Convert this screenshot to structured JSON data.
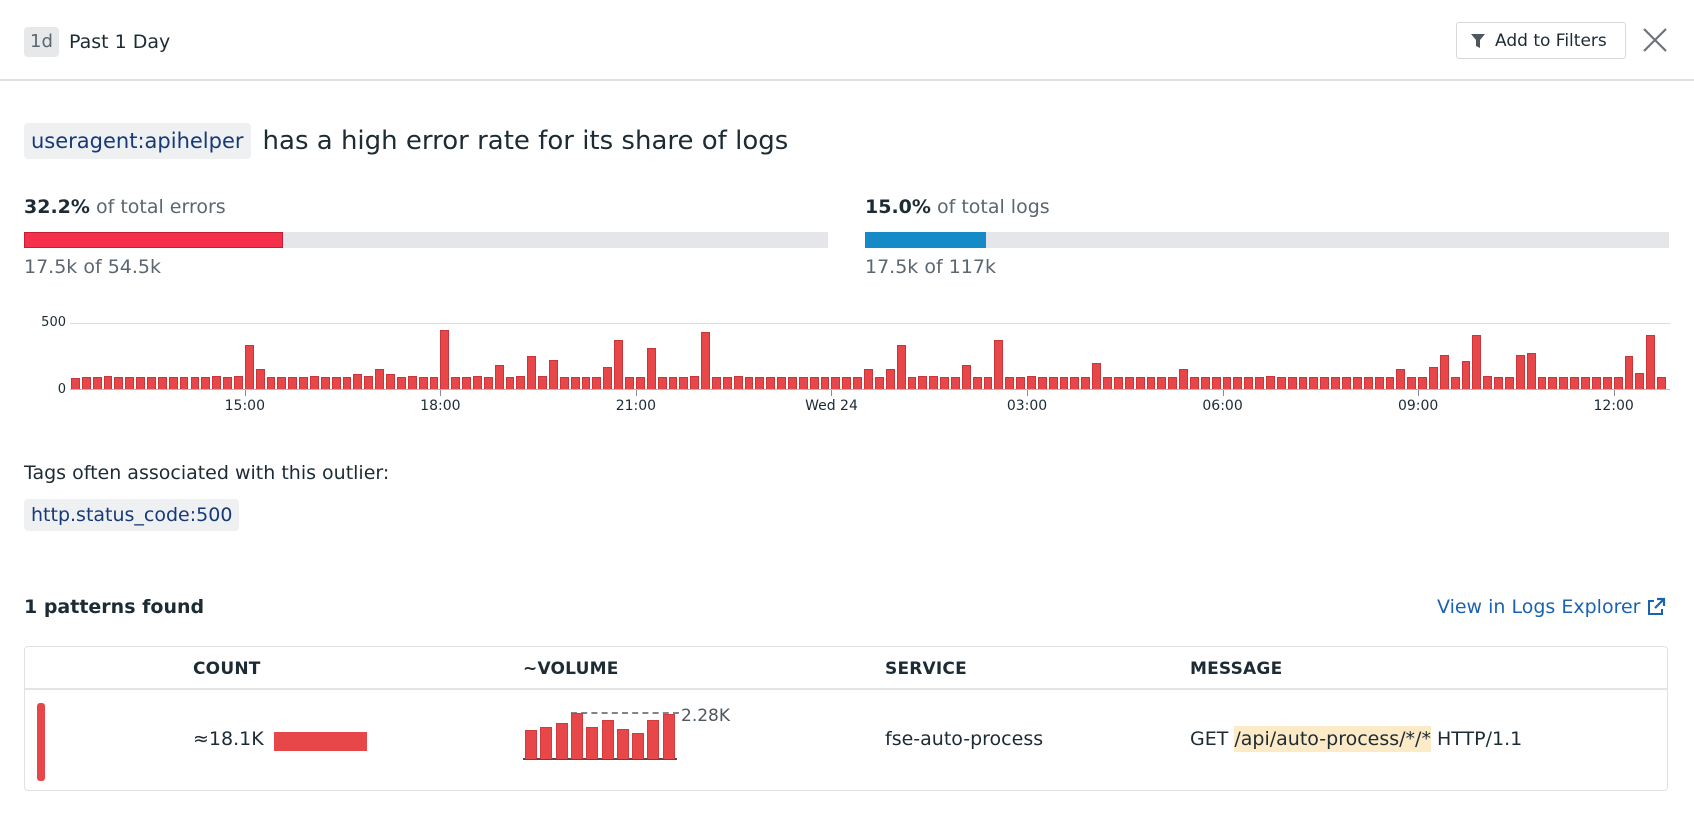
{
  "header": {
    "range_chip": "1d",
    "range_label": "Past 1 Day",
    "add_to_filters_label": "Add to Filters",
    "filter_icon": "filter-funnel-icon",
    "close_icon": "close-x-icon"
  },
  "title": {
    "facet": "useragent:apihelper",
    "text": "has a high error rate for its share of logs"
  },
  "stats": {
    "errors": {
      "percent": "32.2%",
      "label": "of total errors",
      "detail": "17.5k of 54.5k",
      "fill_ratio": 0.322,
      "color": "#f5304a"
    },
    "logs": {
      "percent": "15.0%",
      "label": "of total logs",
      "detail": "17.5k of 117k",
      "fill_ratio": 0.15,
      "color": "#148bc7"
    }
  },
  "chart_data": {
    "type": "bar",
    "title": "",
    "xlabel": "",
    "ylabel": "",
    "ylim": [
      0,
      500
    ],
    "y_ticks": [
      "0",
      "500"
    ],
    "x_ticks": [
      {
        "label": "15:00",
        "index": 16
      },
      {
        "label": "18:00",
        "index": 34
      },
      {
        "label": "21:00",
        "index": 52
      },
      {
        "label": "Wed 24",
        "index": 70
      },
      {
        "label": "03:00",
        "index": 88
      },
      {
        "label": "06:00",
        "index": 106
      },
      {
        "label": "09:00",
        "index": 124
      },
      {
        "label": "12:00",
        "index": 142
      }
    ],
    "grid": true,
    "color": "#e8474a",
    "values": [
      80,
      90,
      90,
      95,
      90,
      90,
      90,
      90,
      90,
      90,
      90,
      90,
      90,
      95,
      90,
      95,
      330,
      150,
      90,
      90,
      90,
      90,
      95,
      90,
      90,
      90,
      110,
      100,
      150,
      110,
      90,
      95,
      90,
      90,
      450,
      90,
      90,
      95,
      90,
      180,
      90,
      100,
      250,
      100,
      220,
      90,
      90,
      90,
      90,
      170,
      370,
      90,
      90,
      310,
      90,
      90,
      90,
      95,
      430,
      90,
      90,
      95,
      90,
      90,
      90,
      90,
      90,
      90,
      90,
      90,
      90,
      90,
      90,
      150,
      90,
      150,
      330,
      90,
      100,
      100,
      90,
      90,
      180,
      90,
      90,
      370,
      90,
      90,
      100,
      90,
      90,
      90,
      90,
      90,
      200,
      90,
      90,
      90,
      90,
      90,
      90,
      90,
      150,
      90,
      90,
      90,
      90,
      90,
      90,
      90,
      100,
      90,
      90,
      90,
      90,
      90,
      90,
      90,
      90,
      90,
      90,
      90,
      150,
      90,
      90,
      170,
      260,
      90,
      210,
      410,
      100,
      90,
      90,
      260,
      270,
      90,
      90,
      90,
      90,
      90,
      90,
      90,
      90,
      250,
      120,
      410,
      90
    ]
  },
  "tags": {
    "title": "Tags often associated with this outlier:",
    "items": [
      "http.status_code:500"
    ]
  },
  "patterns": {
    "title": "1 patterns found",
    "view_link": "View in Logs Explorer",
    "external_icon": "external-link-icon",
    "columns": [
      "COUNT",
      "~VOLUME",
      "SERVICE",
      "MESSAGE"
    ],
    "rows": [
      {
        "count": "≈18.1K",
        "volume_max": "2.28K",
        "volume_values": [
          1.45,
          1.6,
          1.8,
          2.28,
          1.6,
          1.95,
          1.5,
          1.3,
          1.95,
          2.25
        ],
        "service": "fse-auto-process",
        "message_prefix": "GET ",
        "message_highlight": "/api/auto-process/*/*",
        "message_suffix": " HTTP/1.1"
      }
    ]
  }
}
